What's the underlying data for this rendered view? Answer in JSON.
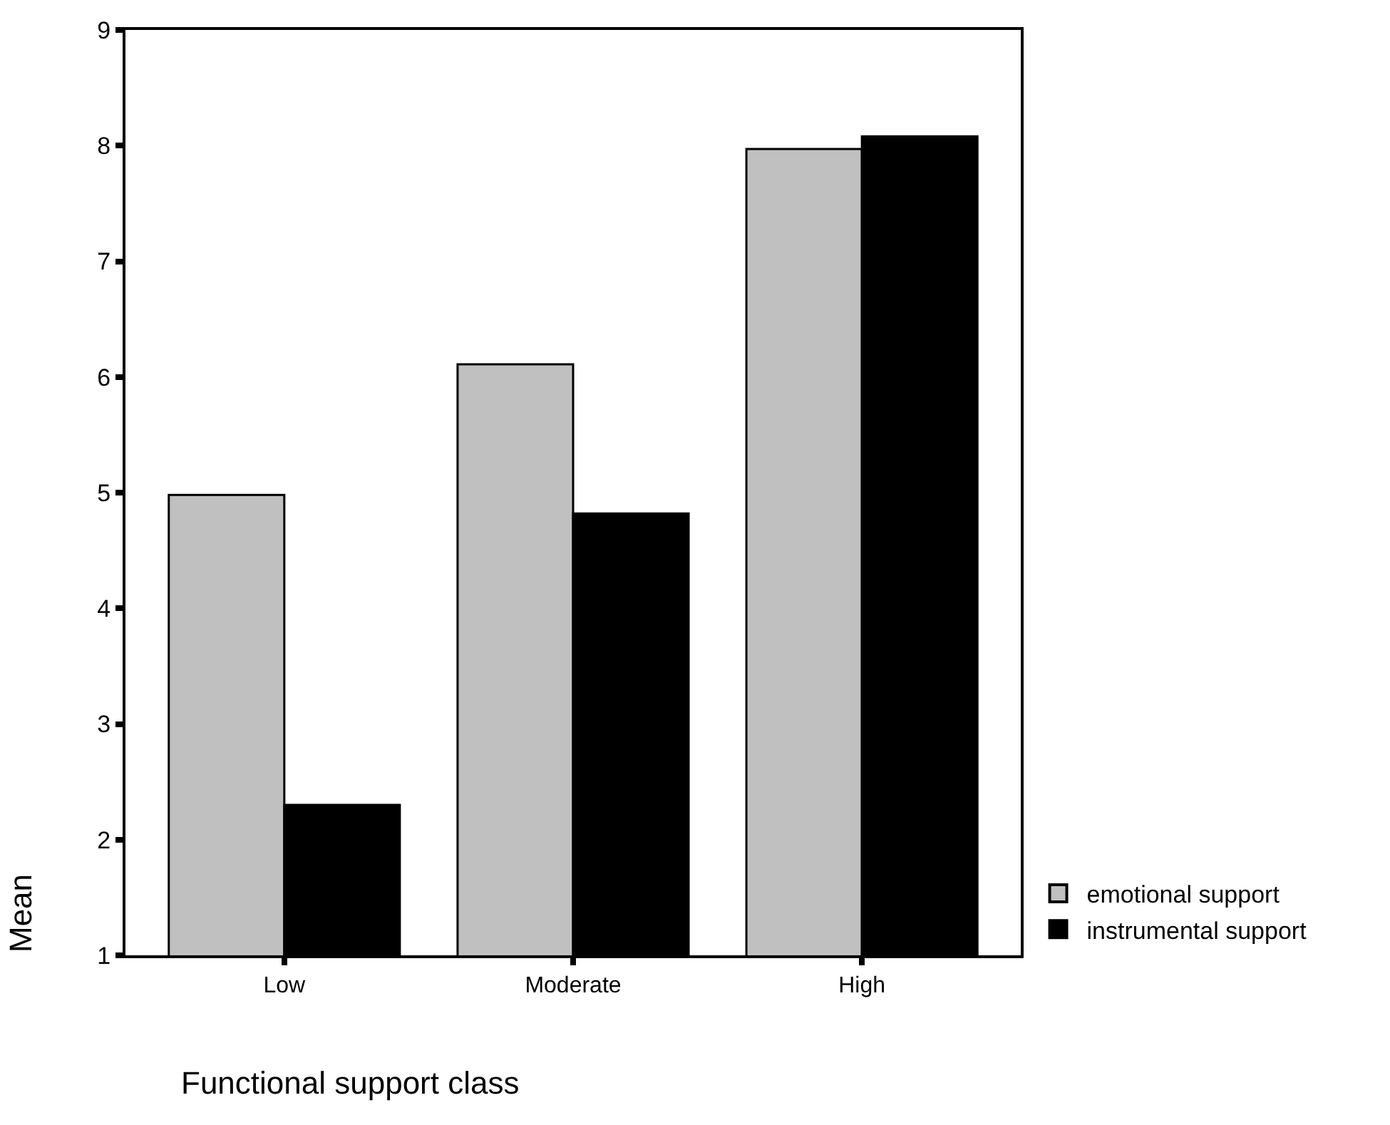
{
  "chart_data": {
    "type": "bar",
    "xlabel": "Functional support class",
    "ylabel": "Mean",
    "categories": [
      "Low",
      "Moderate",
      "High"
    ],
    "series": [
      {
        "name": "emotional support",
        "color": "#c0c0c0",
        "values": [
          4.98,
          6.11,
          7.97
        ]
      },
      {
        "name": "instrumental support",
        "color": "#000000",
        "values": [
          2.3,
          4.82,
          8.08
        ]
      }
    ],
    "ylim": [
      1,
      9
    ],
    "yticks": [
      1,
      2,
      3,
      4,
      5,
      6,
      7,
      8,
      9
    ],
    "grid": false,
    "legend": "bottom right"
  }
}
